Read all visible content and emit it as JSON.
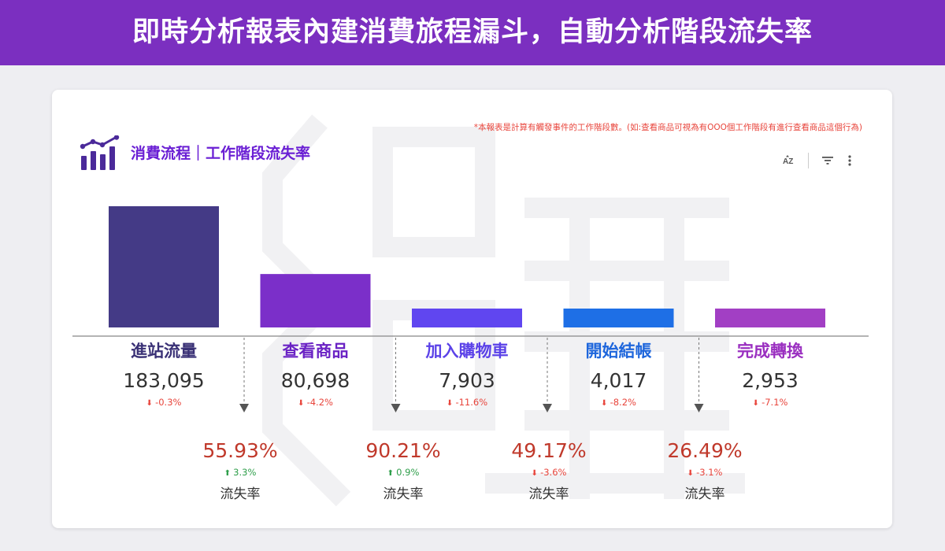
{
  "banner": {
    "title": "即時分析報表內建消費旅程漏斗，自動分析階段流失率"
  },
  "card": {
    "note": "*本報表是計算有觸發事件的工作階段數。(如:查看商品可視為有OOO個工作階段有進行查看商品這個行為)",
    "title": "消費流程｜工作階段流失率",
    "toolbar": {
      "sort_label": "AZ"
    }
  },
  "chart_data": {
    "type": "bar",
    "categories": [
      "進站流量",
      "查看商品",
      "加入購物車",
      "開始結帳",
      "完成轉換"
    ],
    "values": [
      183095,
      80698,
      7903,
      4017,
      2953
    ],
    "value_labels": [
      "183,095",
      "80,698",
      "7,903",
      "4,017",
      "2,953"
    ],
    "changes": [
      "-0.3%",
      "-4.2%",
      "-11.6%",
      "-8.2%",
      "-7.1%"
    ],
    "colors": [
      "#443a86",
      "#7b2fc9",
      "#6046f0",
      "#1e6fe6",
      "#a23fc4"
    ],
    "label_colors": [
      "#3a3176",
      "#6a22c4",
      "#5b42e8",
      "#1e66dc",
      "#9a2fc0"
    ],
    "drop_off": [
      {
        "rate": "55.93%",
        "change": "3.3%",
        "direction": "up",
        "label": "流失率"
      },
      {
        "rate": "90.21%",
        "change": "0.9%",
        "direction": "up",
        "label": "流失率"
      },
      {
        "rate": "49.17%",
        "change": "-3.6%",
        "direction": "down",
        "label": "流失率"
      },
      {
        "rate": "26.49%",
        "change": "-3.1%",
        "direction": "down",
        "label": "流失率"
      }
    ]
  }
}
